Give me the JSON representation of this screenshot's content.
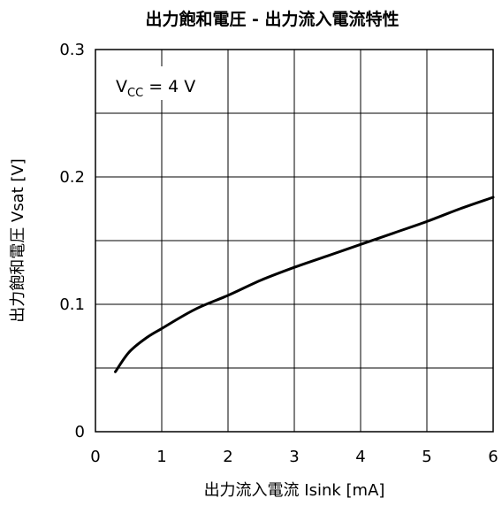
{
  "chart_data": {
    "type": "line",
    "title": "出力飽和電圧 - 出力流入電流特性",
    "xlabel": "出力流入電流 Isink [mA]",
    "ylabel": "出力飽和電圧 Vsat [V]",
    "xlim": [
      0,
      6
    ],
    "ylim": [
      0,
      0.3
    ],
    "x_ticks": [
      "0",
      "1",
      "2",
      "3",
      "4",
      "5",
      "6"
    ],
    "y_ticks": [
      "0",
      "0.1",
      "0.2",
      "0.3"
    ],
    "grid": true,
    "annotation": {
      "main": "V",
      "sub": "CC",
      "rest": " = 4 V"
    },
    "series": [
      {
        "color": "#000000",
        "x": [
          0.3,
          0.5,
          0.75,
          1.0,
          1.5,
          2.0,
          2.5,
          3.0,
          3.5,
          4.0,
          4.5,
          5.0,
          5.5,
          6.0
        ],
        "y": [
          0.047,
          0.062,
          0.073,
          0.081,
          0.096,
          0.107,
          0.119,
          0.129,
          0.138,
          0.147,
          0.156,
          0.165,
          0.175,
          0.184
        ]
      }
    ]
  }
}
